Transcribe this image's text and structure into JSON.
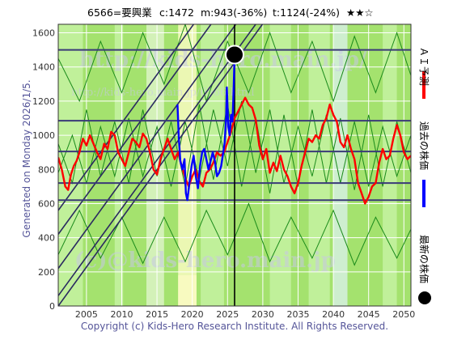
{
  "header": {
    "code_name": "6566=要興業",
    "current": "c:1472",
    "min": "m:943(-36%)",
    "target": "t:1124(-24%)",
    "stars": "★★☆"
  },
  "side_label": "Generated on Monday 2026/1/5.",
  "copyright": "Copyright (c) Kids-Hero Research Institute. All Rights Reserved.",
  "watermark": {
    "line1": "http://kids-hero.main.jp/",
    "line2": "http://kids-hero.main.jp/6566.html",
    "line3": "(c)@kids-hero.main.jp"
  },
  "legend": {
    "forecast": "ＡＩ予測",
    "past": "過去の株価",
    "latest": "最新の株価"
  },
  "colors": {
    "background_green": "#a4e26e",
    "light_green": "#c6f2a2",
    "pale_band": "#dcf3c6",
    "yellow_band": "#f8fac0",
    "cyan_band": "#d6f0e0",
    "grid": "#ffffff",
    "forecast": "#ff0000",
    "past": "#0000ff",
    "level_line": "#3a3a78",
    "trend_line": "#2a2a60",
    "band_line": "#1a8a1a"
  },
  "chart_data": {
    "type": "line",
    "title": "6566=要興業",
    "xlim": [
      2001.0,
      2051.0
    ],
    "ylim": [
      0,
      1650
    ],
    "x_ticks": [
      2005,
      2010,
      2015,
      2020,
      2025,
      2030,
      2035,
      2040,
      2045,
      2050
    ],
    "y_ticks": [
      0,
      200,
      400,
      600,
      800,
      1000,
      1200,
      1400,
      1600
    ],
    "levels": [
      1500,
      1085,
      905,
      720,
      620
    ],
    "current_marker": {
      "x": 2026.0,
      "y": 1472
    },
    "vertical_marker_x": 2026.0,
    "trend_lines": [
      [
        [
          2001.0,
          0
        ],
        [
          2051.0,
          2850
        ]
      ],
      [
        [
          2001.0,
          60
        ],
        [
          2051.0,
          2900
        ]
      ],
      [
        [
          2001.0,
          220
        ],
        [
          2051.0,
          3060
        ]
      ],
      [
        [
          2001.0,
          420
        ],
        [
          2051.0,
          3260
        ]
      ],
      [
        [
          2001.0,
          560
        ],
        [
          2051.0,
          3400
        ]
      ]
    ],
    "past_series": [
      [
        2017.9,
        1180
      ],
      [
        2018.1,
        980
      ],
      [
        2018.3,
        850
      ],
      [
        2018.6,
        800
      ],
      [
        2018.9,
        860
      ],
      [
        2019.1,
        660
      ],
      [
        2019.3,
        620
      ],
      [
        2019.6,
        720
      ],
      [
        2019.9,
        820
      ],
      [
        2020.2,
        880
      ],
      [
        2020.5,
        760
      ],
      [
        2020.8,
        690
      ],
      [
        2021.1,
        820
      ],
      [
        2021.4,
        900
      ],
      [
        2021.7,
        920
      ],
      [
        2022.0,
        860
      ],
      [
        2022.3,
        800
      ],
      [
        2022.6,
        850
      ],
      [
        2022.9,
        900
      ],
      [
        2023.2,
        850
      ],
      [
        2023.5,
        760
      ],
      [
        2023.8,
        780
      ],
      [
        2024.1,
        820
      ],
      [
        2024.4,
        900
      ],
      [
        2024.6,
        960
      ],
      [
        2024.8,
        1100
      ],
      [
        2024.9,
        1280
      ],
      [
        2025.1,
        1050
      ],
      [
        2025.3,
        1000
      ],
      [
        2025.5,
        1120
      ],
      [
        2025.7,
        1080
      ],
      [
        2025.85,
        1250
      ],
      [
        2026.0,
        1472
      ]
    ],
    "forecast_series": [
      [
        2001.0,
        870
      ],
      [
        2001.5,
        800
      ],
      [
        2002.0,
        700
      ],
      [
        2002.4,
        680
      ],
      [
        2002.8,
        770
      ],
      [
        2003.2,
        820
      ],
      [
        2003.6,
        850
      ],
      [
        2004.0,
        900
      ],
      [
        2004.5,
        980
      ],
      [
        2005.0,
        940
      ],
      [
        2005.5,
        1000
      ],
      [
        2006.0,
        950
      ],
      [
        2006.5,
        900
      ],
      [
        2007.0,
        860
      ],
      [
        2007.5,
        950
      ],
      [
        2008.0,
        920
      ],
      [
        2008.5,
        1020
      ],
      [
        2009.0,
        1000
      ],
      [
        2009.5,
        900
      ],
      [
        2010.0,
        860
      ],
      [
        2010.5,
        820
      ],
      [
        2011.0,
        900
      ],
      [
        2011.5,
        980
      ],
      [
        2012.0,
        960
      ],
      [
        2012.5,
        930
      ],
      [
        2013.0,
        1010
      ],
      [
        2013.5,
        980
      ],
      [
        2014.0,
        900
      ],
      [
        2014.5,
        800
      ],
      [
        2015.0,
        770
      ],
      [
        2015.5,
        860
      ],
      [
        2016.0,
        920
      ],
      [
        2016.5,
        980
      ],
      [
        2017.0,
        920
      ],
      [
        2017.5,
        860
      ],
      [
        2018.0,
        900
      ],
      [
        2018.5,
        820
      ],
      [
        2019.0,
        750
      ],
      [
        2019.5,
        700
      ],
      [
        2020.0,
        760
      ],
      [
        2020.5,
        800
      ],
      [
        2021.0,
        730
      ],
      [
        2021.5,
        700
      ],
      [
        2022.0,
        780
      ],
      [
        2022.5,
        800
      ],
      [
        2023.0,
        840
      ],
      [
        2023.5,
        900
      ],
      [
        2024.0,
        880
      ],
      [
        2024.5,
        900
      ],
      [
        2025.0,
        960
      ],
      [
        2025.5,
        1020
      ],
      [
        2026.0,
        1100
      ],
      [
        2026.5,
        1140
      ],
      [
        2027.0,
        1180
      ],
      [
        2027.5,
        1220
      ],
      [
        2028.0,
        1180
      ],
      [
        2028.5,
        1160
      ],
      [
        2029.0,
        1090
      ],
      [
        2029.5,
        940
      ],
      [
        2030.0,
        860
      ],
      [
        2030.5,
        920
      ],
      [
        2031.0,
        780
      ],
      [
        2031.5,
        840
      ],
      [
        2032.0,
        790
      ],
      [
        2032.5,
        880
      ],
      [
        2033.0,
        800
      ],
      [
        2033.5,
        760
      ],
      [
        2034.0,
        700
      ],
      [
        2034.5,
        660
      ],
      [
        2035.0,
        720
      ],
      [
        2035.5,
        820
      ],
      [
        2036.0,
        900
      ],
      [
        2036.5,
        980
      ],
      [
        2037.0,
        960
      ],
      [
        2037.5,
        1000
      ],
      [
        2038.0,
        980
      ],
      [
        2038.5,
        1060
      ],
      [
        2039.0,
        1100
      ],
      [
        2039.5,
        1180
      ],
      [
        2040.0,
        1120
      ],
      [
        2040.5,
        1080
      ],
      [
        2041.0,
        960
      ],
      [
        2041.5,
        930
      ],
      [
        2042.0,
        1000
      ],
      [
        2042.5,
        920
      ],
      [
        2043.0,
        860
      ],
      [
        2043.5,
        720
      ],
      [
        2044.0,
        660
      ],
      [
        2044.5,
        600
      ],
      [
        2045.0,
        640
      ],
      [
        2045.5,
        700
      ],
      [
        2046.0,
        720
      ],
      [
        2046.5,
        840
      ],
      [
        2047.0,
        920
      ],
      [
        2047.5,
        860
      ],
      [
        2048.0,
        880
      ],
      [
        2048.5,
        980
      ],
      [
        2049.0,
        1060
      ],
      [
        2049.5,
        1000
      ],
      [
        2050.0,
        900
      ],
      [
        2050.5,
        860
      ],
      [
        2051.0,
        880
      ]
    ],
    "green_band_lines": [
      [
        [
          2001.0,
          950
        ],
        [
          2003.0,
          720
        ],
        [
          2005.0,
          1150
        ],
        [
          2007.0,
          760
        ],
        [
          2009.0,
          1080
        ],
        [
          2011.0,
          720
        ],
        [
          2013.0,
          1150
        ],
        [
          2015.0,
          760
        ],
        [
          2017.0,
          1080
        ],
        [
          2019.0,
          700
        ],
        [
          2021.0,
          1180
        ],
        [
          2023.0,
          740
        ],
        [
          2025.0,
          1180
        ],
        [
          2027.0,
          700
        ],
        [
          2029.0,
          1100
        ],
        [
          2031.0,
          660
        ],
        [
          2033.0,
          1120
        ],
        [
          2035.0,
          700
        ],
        [
          2037.0,
          1150
        ],
        [
          2039.0,
          720
        ],
        [
          2041.0,
          1100
        ],
        [
          2043.0,
          680
        ],
        [
          2045.0,
          1120
        ],
        [
          2047.0,
          700
        ],
        [
          2049.0,
          1080
        ],
        [
          2051.0,
          780
        ]
      ],
      [
        [
          2001.0,
          780
        ],
        [
          2003.0,
          1000
        ],
        [
          2005.0,
          720
        ],
        [
          2007.0,
          1050
        ],
        [
          2009.0,
          760
        ],
        [
          2011.0,
          1100
        ],
        [
          2013.0,
          760
        ],
        [
          2015.0,
          1050
        ],
        [
          2017.0,
          700
        ],
        [
          2019.0,
          1080
        ],
        [
          2021.0,
          740
        ],
        [
          2023.0,
          1150
        ],
        [
          2025.0,
          820
        ],
        [
          2027.0,
          1200
        ],
        [
          2029.0,
          780
        ],
        [
          2031.0,
          1150
        ],
        [
          2033.0,
          720
        ],
        [
          2035.0,
          1050
        ],
        [
          2037.0,
          760
        ],
        [
          2039.0,
          1120
        ],
        [
          2041.0,
          720
        ],
        [
          2043.0,
          1080
        ],
        [
          2045.0,
          700
        ],
        [
          2047.0,
          1050
        ],
        [
          2049.0,
          760
        ],
        [
          2051.0,
          1000
        ]
      ],
      [
        [
          2001.0,
          1450
        ],
        [
          2004.0,
          1200
        ],
        [
          2007.0,
          1550
        ],
        [
          2010.0,
          1250
        ],
        [
          2013.0,
          1600
        ],
        [
          2016.0,
          1300
        ],
        [
          2019.0,
          1650
        ],
        [
          2022.0,
          1200
        ],
        [
          2025.0,
          1550
        ],
        [
          2028.0,
          1250
        ],
        [
          2031.0,
          1600
        ],
        [
          2034.0,
          1250
        ],
        [
          2037.0,
          1550
        ],
        [
          2040.0,
          1200
        ],
        [
          2043.0,
          1580
        ],
        [
          2046.0,
          1250
        ],
        [
          2049.0,
          1600
        ],
        [
          2051.0,
          1350
        ]
      ],
      [
        [
          2001.0,
          300
        ],
        [
          2004.0,
          560
        ],
        [
          2007.0,
          280
        ],
        [
          2010.0,
          520
        ],
        [
          2013.0,
          250
        ],
        [
          2016.0,
          520
        ],
        [
          2019.0,
          260
        ],
        [
          2022.0,
          560
        ],
        [
          2025.0,
          300
        ],
        [
          2028.0,
          600
        ],
        [
          2031.0,
          260
        ],
        [
          2034.0,
          520
        ],
        [
          2037.0,
          280
        ],
        [
          2040.0,
          560
        ],
        [
          2043.0,
          240
        ],
        [
          2046.0,
          520
        ],
        [
          2049.0,
          280
        ],
        [
          2051.0,
          450
        ]
      ]
    ]
  }
}
